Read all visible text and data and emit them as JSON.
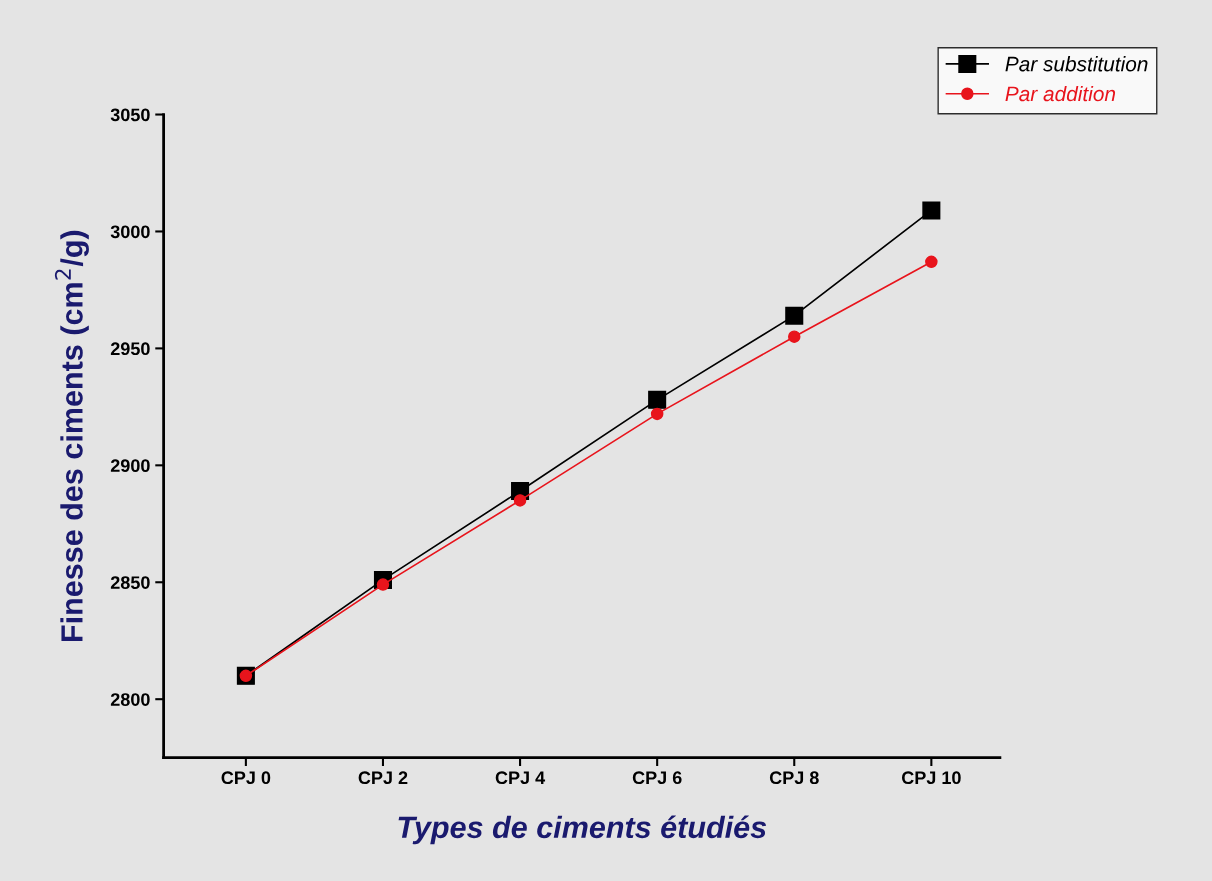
{
  "chart_data": {
    "type": "line",
    "xlabel": "Types de ciments étudiés",
    "ylabel": "Finesse des ciments (cm$^{2}$/g)",
    "categories": [
      "CPJ 0",
      "CPJ 2",
      "CPJ 4",
      "CPJ 6",
      "CPJ 8",
      "CPJ 10"
    ],
    "series": [
      {
        "name": "Par substitution",
        "color": "#000000",
        "marker": "square",
        "values": [
          2810,
          2851,
          2889,
          2928,
          2964,
          3009
        ]
      },
      {
        "name": "Par addition",
        "color": "#e8141c",
        "marker": "circle",
        "values": [
          2810,
          2849,
          2885,
          2922,
          2955,
          2987
        ]
      }
    ],
    "ylim": [
      2775,
      3050
    ],
    "yticks": [
      2800,
      2850,
      2900,
      2950,
      3000,
      3050
    ],
    "grid": false,
    "legend": "top right",
    "line_style": "solid"
  }
}
